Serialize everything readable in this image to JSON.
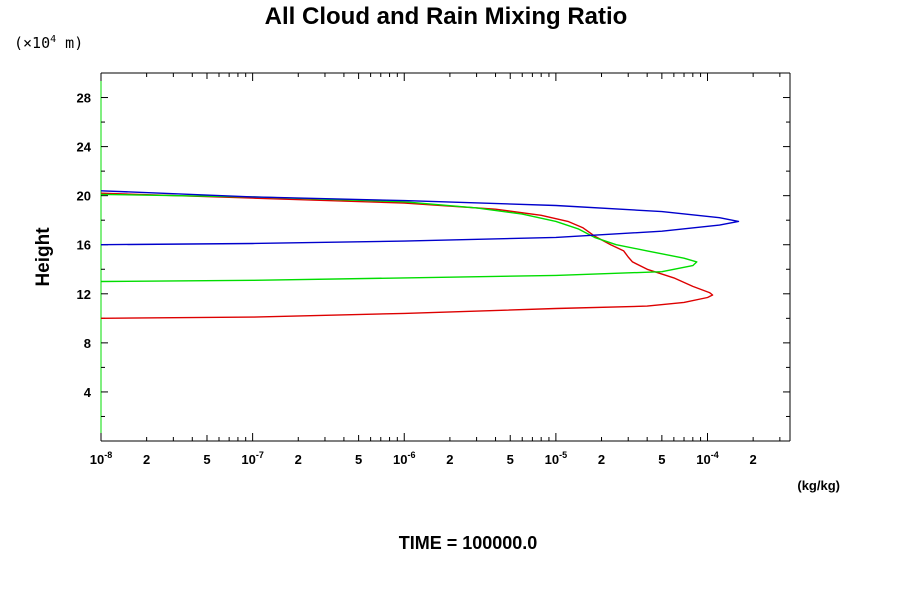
{
  "chart_data": {
    "type": "line",
    "title": "All Cloud and Rain Mixing Ratio",
    "ylabel": "Height",
    "y_unit_prefix": "(×10",
    "y_unit_exponent": "4",
    "y_unit_suffix": " m)",
    "x_unit": "(kg/kg)",
    "x_scale": "log",
    "xlim": [
      1e-08,
      0.00035
    ],
    "ylim": [
      0,
      30
    ],
    "y_ticks": [
      "4",
      "8",
      "12",
      "16",
      "20",
      "24",
      "28"
    ],
    "x_tick_labels": [
      {
        "base": "10",
        "exp": "-8",
        "value": 1e-08
      },
      {
        "base": "2",
        "exp": "",
        "value": 2e-08
      },
      {
        "base": "5",
        "exp": "",
        "value": 5e-08
      },
      {
        "base": "10",
        "exp": "-7",
        "value": 1e-07
      },
      {
        "base": "2",
        "exp": "",
        "value": 2e-07
      },
      {
        "base": "5",
        "exp": "",
        "value": 5e-07
      },
      {
        "base": "10",
        "exp": "-6",
        "value": 1e-06
      },
      {
        "base": "2",
        "exp": "",
        "value": 2e-06
      },
      {
        "base": "5",
        "exp": "",
        "value": 5e-06
      },
      {
        "base": "10",
        "exp": "-5",
        "value": 1e-05
      },
      {
        "base": "2",
        "exp": "",
        "value": 2e-05
      },
      {
        "base": "5",
        "exp": "",
        "value": 5e-05
      },
      {
        "base": "10",
        "exp": "-4",
        "value": 0.0001
      },
      {
        "base": "2",
        "exp": "",
        "value": 0.0002
      }
    ],
    "series": [
      {
        "color": "#dd0000",
        "points": [
          [
            1e-08,
            10.0
          ],
          [
            1e-07,
            10.1
          ],
          [
            1e-06,
            10.4
          ],
          [
            1e-05,
            10.8
          ],
          [
            4e-05,
            11.0
          ],
          [
            7e-05,
            11.3
          ],
          [
            0.0001,
            11.7
          ],
          [
            0.000108,
            11.9
          ],
          [
            0.000103,
            12.1
          ],
          [
            8e-05,
            12.6
          ],
          [
            6e-05,
            13.3
          ],
          [
            4e-05,
            14.0
          ],
          [
            3.2e-05,
            14.6
          ],
          [
            3e-05,
            15.0
          ],
          [
            2.8e-05,
            15.5
          ],
          [
            2.3e-05,
            16.0
          ],
          [
            1.8e-05,
            16.7
          ],
          [
            1.5e-05,
            17.4
          ],
          [
            1.2e-05,
            17.9
          ],
          [
            8e-06,
            18.4
          ],
          [
            4e-06,
            18.9
          ],
          [
            1e-06,
            19.4
          ],
          [
            1e-07,
            19.8
          ],
          [
            1e-08,
            20.2
          ]
        ]
      },
      {
        "color": "#00dd00",
        "points": [
          [
            1e-08,
            13.0
          ],
          [
            1e-07,
            13.1
          ],
          [
            1e-06,
            13.3
          ],
          [
            1e-05,
            13.5
          ],
          [
            5e-05,
            13.8
          ],
          [
            8e-05,
            14.3
          ],
          [
            8.5e-05,
            14.6
          ],
          [
            7e-05,
            14.9
          ],
          [
            4e-05,
            15.5
          ],
          [
            2.5e-05,
            16.0
          ],
          [
            1.8e-05,
            16.6
          ],
          [
            1.4e-05,
            17.3
          ],
          [
            1e-05,
            17.9
          ],
          [
            6e-06,
            18.5
          ],
          [
            3e-06,
            19.0
          ],
          [
            1e-06,
            19.5
          ],
          [
            1e-07,
            19.9
          ],
          [
            1e-08,
            20.1
          ]
        ]
      },
      {
        "color": "#0000cc",
        "points": [
          [
            1e-08,
            16.0
          ],
          [
            1e-07,
            16.1
          ],
          [
            1e-06,
            16.3
          ],
          [
            1e-05,
            16.6
          ],
          [
            5e-05,
            17.1
          ],
          [
            0.00012,
            17.6
          ],
          [
            0.00016,
            17.9
          ],
          [
            0.00012,
            18.2
          ],
          [
            5e-05,
            18.7
          ],
          [
            1e-05,
            19.2
          ],
          [
            1e-06,
            19.6
          ],
          [
            1e-07,
            19.9
          ],
          [
            1e-08,
            20.4
          ]
        ]
      }
    ]
  },
  "footer": {
    "time_label": "TIME = 100000.0"
  }
}
